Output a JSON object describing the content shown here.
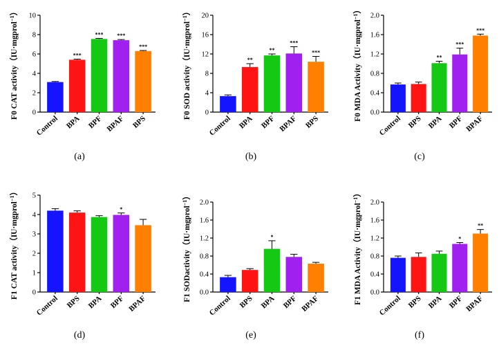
{
  "figure": {
    "panels": [
      {
        "caption": "(a)",
        "ylabel": "F0 CAT activity（IU·mgprol",
        "ylabel_sup": "−1",
        "ylabel_close": "）"
      },
      {
        "caption": "(b)",
        "ylabel": "F0 SOD activity（IU·mgprol",
        "ylabel_sup": "−1",
        "ylabel_close": "）"
      },
      {
        "caption": "(c)",
        "ylabel": "F0 MDA Activity（IU·mgprol",
        "ylabel_sup": "−1",
        "ylabel_close": "）"
      },
      {
        "caption": "(d)",
        "ylabel": "F1 CAT activity（IU·mgprol",
        "ylabel_sup": "−1",
        "ylabel_close": "）"
      },
      {
        "caption": "(e)",
        "ylabel": "F1 SODactivity（IU·mgprol",
        "ylabel_sup": "−1",
        "ylabel_close": "）"
      },
      {
        "caption": "(f)",
        "ylabel": "F1 MDA Activity（IU·mgprol",
        "ylabel_sup": "−1",
        "ylabel_close": "）"
      }
    ]
  },
  "colors": {
    "Control": "#1414ff",
    "BPA": "#ff1414",
    "BPF": "#a020f0",
    "BPAF": "#ff8000",
    "BPS": "#14c814"
  },
  "chart_data": [
    {
      "type": "bar",
      "title": "",
      "xlabel": "",
      "ylabel": "F0 CAT activity (IU·mgprol−1)",
      "ylim": [
        0,
        10
      ],
      "yticks": [
        "0",
        "2",
        "4",
        "6",
        "8",
        "10"
      ],
      "categories": [
        "Control",
        "BPA",
        "BPF",
        "BPAF",
        "BPS"
      ],
      "values": [
        3.1,
        5.4,
        7.55,
        7.42,
        6.3
      ],
      "errors": [
        0.06,
        0.07,
        0.06,
        0.07,
        0.06
      ],
      "colors": [
        "#1414ff",
        "#ff1414",
        "#14c814",
        "#a020f0",
        "#ff8000"
      ],
      "significance": [
        "",
        "***",
        "***",
        "***",
        "***"
      ]
    },
    {
      "type": "bar",
      "title": "",
      "xlabel": "",
      "ylabel": "F0 SOD activity (IU·mgprol−1)",
      "ylim": [
        0,
        20
      ],
      "yticks": [
        "0",
        "4",
        "8",
        "12",
        "16",
        "20"
      ],
      "categories": [
        "Control",
        "BPA",
        "BPF",
        "BPAF",
        "BPS"
      ],
      "values": [
        3.3,
        9.3,
        11.7,
        12.1,
        10.4
      ],
      "errors": [
        0.25,
        0.7,
        0.3,
        1.4,
        1.1
      ],
      "colors": [
        "#1414ff",
        "#ff1414",
        "#14c814",
        "#a020f0",
        "#ff8000"
      ],
      "significance": [
        "",
        "**",
        "**",
        "***",
        "***"
      ]
    },
    {
      "type": "bar",
      "title": "",
      "xlabel": "",
      "ylabel": "F0 MDA Activity (IU·mgprol−1)",
      "ylim": [
        0,
        2.0
      ],
      "yticks": [
        "0.0",
        "0.4",
        "0.8",
        "1.2",
        "1.6",
        "2.0"
      ],
      "categories": [
        "Control",
        "BPS",
        "BPA",
        "BPF",
        "BPAF"
      ],
      "values": [
        0.57,
        0.58,
        1.01,
        1.19,
        1.58
      ],
      "errors": [
        0.03,
        0.04,
        0.04,
        0.13,
        0.03
      ],
      "colors": [
        "#1414ff",
        "#ff1414",
        "#14c814",
        "#a020f0",
        "#ff8000"
      ],
      "significance": [
        "",
        "",
        "**",
        "***",
        "***"
      ]
    },
    {
      "type": "bar",
      "title": "",
      "xlabel": "",
      "ylabel": "F1 CAT activity (IU·mgprol−1)",
      "ylim": [
        0,
        5
      ],
      "yticks": [
        "0",
        "1",
        "2",
        "3",
        "4",
        "5"
      ],
      "categories": [
        "Control",
        "BPS",
        "BPA",
        "BPF",
        "BPAF"
      ],
      "values": [
        4.2,
        4.1,
        3.87,
        3.98,
        3.45
      ],
      "errors": [
        0.1,
        0.09,
        0.07,
        0.1,
        0.3
      ],
      "colors": [
        "#1414ff",
        "#ff1414",
        "#14c814",
        "#a020f0",
        "#ff8000"
      ],
      "significance": [
        "",
        "",
        "",
        "*",
        ""
      ]
    },
    {
      "type": "bar",
      "title": "",
      "xlabel": "",
      "ylabel": "F1 SODactivity (IU·mgprol−1)",
      "ylim": [
        0,
        2.0
      ],
      "yticks": [
        "0.0",
        "0.4",
        "0.8",
        "1.2",
        "1.6",
        "2.0"
      ],
      "categories": [
        "Control",
        "BPS",
        "BPA",
        "BPF",
        "BPAF"
      ],
      "values": [
        0.33,
        0.49,
        0.96,
        0.78,
        0.63
      ],
      "errors": [
        0.04,
        0.03,
        0.18,
        0.06,
        0.03
      ],
      "colors": [
        "#1414ff",
        "#ff1414",
        "#14c814",
        "#a020f0",
        "#ff8000"
      ],
      "significance": [
        "",
        "",
        "*",
        "",
        ""
      ]
    },
    {
      "type": "bar",
      "title": "",
      "xlabel": "",
      "ylabel": "F1 MDA Activity (IU·mgprol−1)",
      "ylim": [
        0,
        2.0
      ],
      "yticks": [
        "0.0",
        "0.4",
        "0.8",
        "1.2",
        "1.6",
        "2.0"
      ],
      "categories": [
        "Control",
        "BPS",
        "BPA",
        "BPF",
        "BPAF"
      ],
      "values": [
        0.76,
        0.78,
        0.85,
        1.07,
        1.3
      ],
      "errors": [
        0.04,
        0.09,
        0.06,
        0.03,
        0.09
      ],
      "colors": [
        "#1414ff",
        "#ff1414",
        "#14c814",
        "#a020f0",
        "#ff8000"
      ],
      "significance": [
        "",
        "",
        "",
        "*",
        "**"
      ]
    }
  ]
}
